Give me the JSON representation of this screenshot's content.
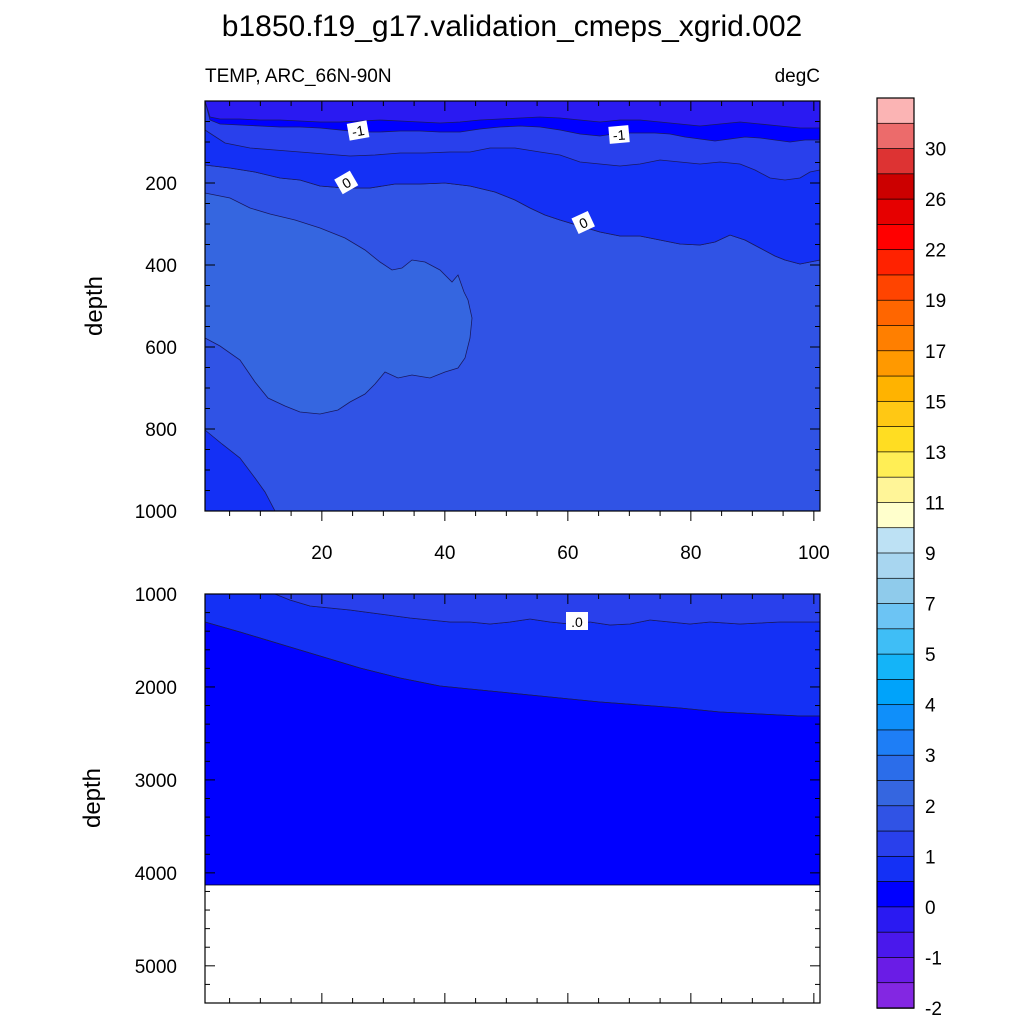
{
  "chart_data": {
    "type": "contour",
    "title": "b1850.f19_g17.validation_cmeps_xgrid.002",
    "left_subtitle": "TEMP, ARC_66N-90N",
    "right_subtitle": "degC",
    "x_ticks": [
      "20",
      "40",
      "60",
      "80",
      "100"
    ],
    "x_range": [
      1,
      101
    ],
    "panels": [
      {
        "name": "upper-ocean",
        "ylabel": "depth",
        "ylim": [
          0,
          1000
        ],
        "y_ticks": [
          "200",
          "400",
          "600",
          "800",
          "1000"
        ],
        "contour_labels": [
          {
            "text": "-1",
            "x": 25,
            "depth": 70
          },
          {
            "text": "-1",
            "x": 68,
            "depth": 80
          },
          {
            "text": "0",
            "x": 23,
            "depth": 190
          },
          {
            "text": "0",
            "x": 62,
            "depth": 300
          }
        ]
      },
      {
        "name": "deep-ocean",
        "ylabel": "depth",
        "ylim": [
          1000,
          5400
        ],
        "y_ticks": [
          "1000",
          "2000",
          "3000",
          "4000",
          "5000"
        ],
        "bathymetry_depth": 4120,
        "contour_labels": [
          {
            "text": ".0",
            "x": 62,
            "depth": 1280
          }
        ]
      }
    ],
    "colorbar": {
      "labels": [
        "30",
        "26",
        "22",
        "19",
        "17",
        "15",
        "13",
        "11",
        "9",
        "7",
        "5",
        "4",
        "3",
        "2",
        "1",
        "0",
        "-1",
        "-2"
      ],
      "colors_top_to_bottom": [
        "#FBB4B4",
        "#EC6B6B",
        "#DD3333",
        "#CC0000",
        "#E60000",
        "#FF0000",
        "#FF2200",
        "#FF4400",
        "#FF6600",
        "#FF7F00",
        "#FF9900",
        "#FFB300",
        "#FFC814",
        "#FFDD22",
        "#FFEE55",
        "#FFF598",
        "#FFFFCC",
        "#BDE1F4",
        "#A8D6F0",
        "#8FCBEB",
        "#6CC4F4",
        "#3FBEF6",
        "#14B4F8",
        "#00A3FA",
        "#0F8FFA",
        "#1E7EF6",
        "#2B6DEA",
        "#3566E0",
        "#3053E5",
        "#2940EC",
        "#1430F5",
        "#0000FF",
        "#2A1AF2",
        "#4A18EC",
        "#6A1CE6",
        "#8327E2"
      ]
    },
    "fill_colors": {
      "lt_minus_1": "#2A1AF2",
      "m1_to_m05": "#0000FF",
      "m05_to_0": "#1430F5",
      "0_to_05": "#2940EC",
      "05_to_1": "#3053E5",
      "gt_1": "#3566E0"
    }
  }
}
